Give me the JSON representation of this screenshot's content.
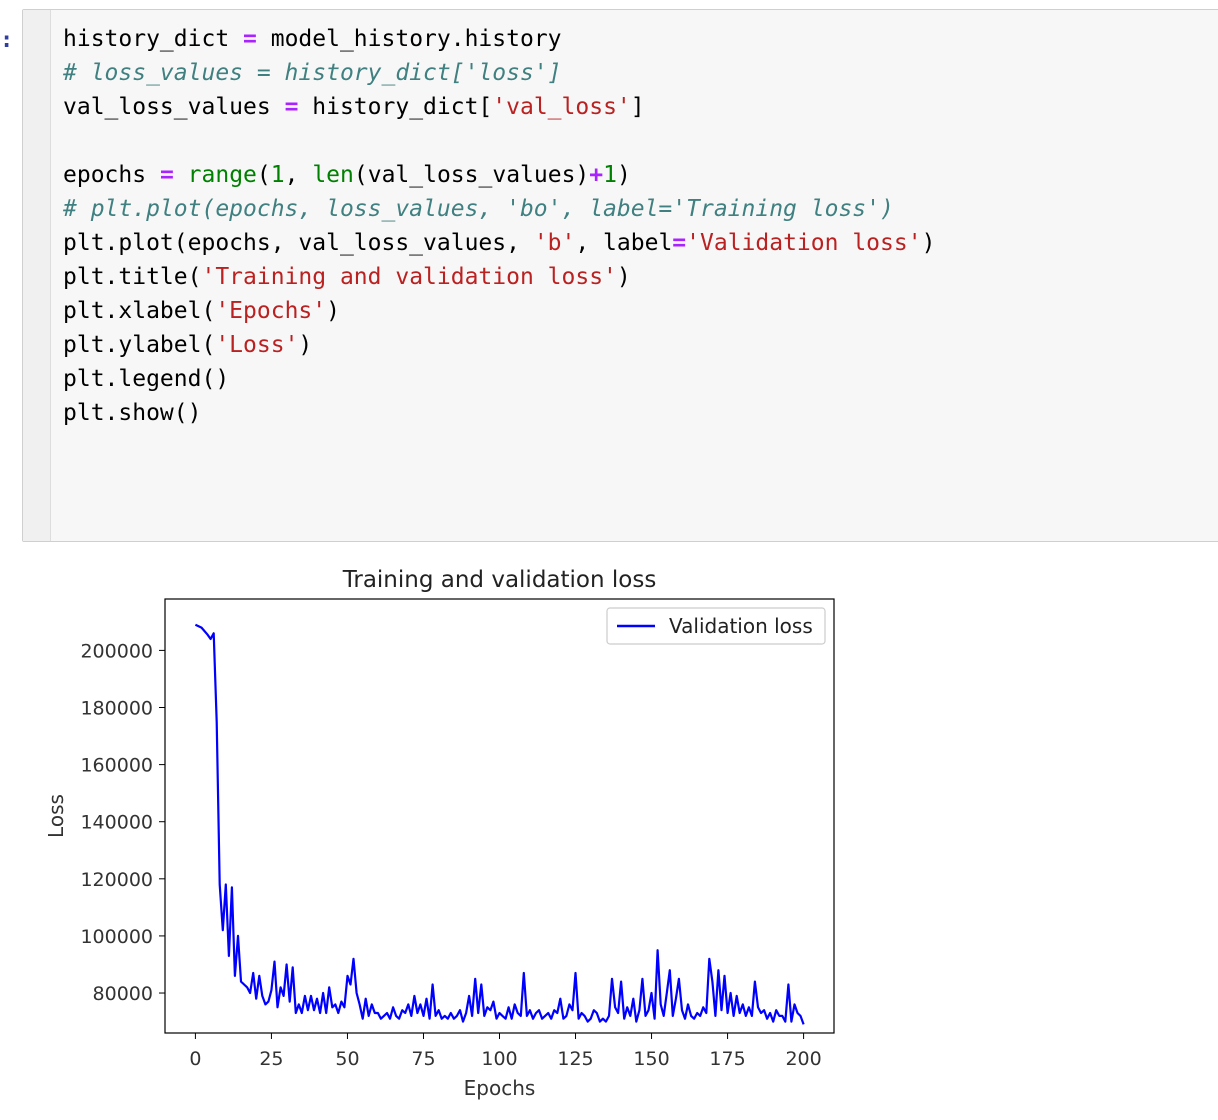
{
  "cell": {
    "prompt": ":",
    "lines": [
      [
        {
          "t": "plain",
          "v": "history_dict "
        },
        {
          "t": "op",
          "v": "="
        },
        {
          "t": "plain",
          "v": " model_history.history"
        }
      ],
      [
        {
          "t": "com",
          "v": "# loss_values = history_dict['loss']"
        }
      ],
      [
        {
          "t": "plain",
          "v": "val_loss_values "
        },
        {
          "t": "op",
          "v": "="
        },
        {
          "t": "plain",
          "v": " history_dict["
        },
        {
          "t": "str",
          "v": "'val_loss'"
        },
        {
          "t": "plain",
          "v": "]"
        }
      ],
      [],
      [
        {
          "t": "plain",
          "v": "epochs "
        },
        {
          "t": "op",
          "v": "="
        },
        {
          "t": "plain",
          "v": " "
        },
        {
          "t": "builtin",
          "v": "range"
        },
        {
          "t": "plain",
          "v": "("
        },
        {
          "t": "num",
          "v": "1"
        },
        {
          "t": "plain",
          "v": ", "
        },
        {
          "t": "builtin",
          "v": "len"
        },
        {
          "t": "plain",
          "v": "(val_loss_values)"
        },
        {
          "t": "op",
          "v": "+"
        },
        {
          "t": "num",
          "v": "1"
        },
        {
          "t": "plain",
          "v": ")"
        }
      ],
      [
        {
          "t": "com",
          "v": "# plt.plot(epochs, loss_values, 'bo', label='Training loss')"
        }
      ],
      [
        {
          "t": "plain",
          "v": "plt.plot(epochs, val_loss_values, "
        },
        {
          "t": "str",
          "v": "'b'"
        },
        {
          "t": "plain",
          "v": ", label"
        },
        {
          "t": "op",
          "v": "="
        },
        {
          "t": "str",
          "v": "'Validation loss'"
        },
        {
          "t": "plain",
          "v": ")"
        }
      ],
      [
        {
          "t": "plain",
          "v": "plt.title("
        },
        {
          "t": "str",
          "v": "'Training and validation loss'"
        },
        {
          "t": "plain",
          "v": ")"
        }
      ],
      [
        {
          "t": "plain",
          "v": "plt.xlabel("
        },
        {
          "t": "str",
          "v": "'Epochs'"
        },
        {
          "t": "plain",
          "v": ")"
        }
      ],
      [
        {
          "t": "plain",
          "v": "plt.ylabel("
        },
        {
          "t": "str",
          "v": "'Loss'"
        },
        {
          "t": "plain",
          "v": ")"
        }
      ],
      [
        {
          "t": "plain",
          "v": "plt.legend()"
        }
      ],
      [
        {
          "t": "plain",
          "v": "plt.show()"
        }
      ]
    ]
  },
  "colors": {
    "line": "#0000ff",
    "axis": "#000000",
    "legend_border": "#cccccc"
  },
  "chart_data": {
    "type": "line",
    "title": "Training and validation loss",
    "xlabel": "Epochs",
    "ylabel": "Loss",
    "xlim": [
      -10,
      210
    ],
    "ylim": [
      66000,
      218000
    ],
    "xticks": [
      0,
      25,
      50,
      75,
      100,
      125,
      150,
      175,
      200
    ],
    "yticks": [
      80000,
      100000,
      120000,
      140000,
      160000,
      180000,
      200000
    ],
    "grid": false,
    "legend_loc": "upper right",
    "series": [
      {
        "name": "Validation loss",
        "color": "#0000ff",
        "points": [
          [
            0,
            209000
          ],
          [
            2,
            208000
          ],
          [
            4,
            205500
          ],
          [
            5,
            204000
          ],
          [
            6,
            206000
          ],
          [
            7,
            175000
          ],
          [
            8,
            118000
          ],
          [
            9,
            102000
          ],
          [
            10,
            118000
          ],
          [
            11,
            93000
          ],
          [
            12,
            117000
          ],
          [
            13,
            86000
          ],
          [
            14,
            100000
          ],
          [
            15,
            84000
          ],
          [
            16,
            83000
          ],
          [
            17,
            82000
          ],
          [
            18,
            80000
          ],
          [
            19,
            87000
          ],
          [
            20,
            78000
          ],
          [
            21,
            86000
          ],
          [
            22,
            79000
          ],
          [
            23,
            76000
          ],
          [
            24,
            77000
          ],
          [
            25,
            81000
          ],
          [
            26,
            91000
          ],
          [
            27,
            75000
          ],
          [
            28,
            82000
          ],
          [
            29,
            79000
          ],
          [
            30,
            90000
          ],
          [
            31,
            77000
          ],
          [
            32,
            89000
          ],
          [
            33,
            73000
          ],
          [
            34,
            76000
          ],
          [
            35,
            73000
          ],
          [
            36,
            79000
          ],
          [
            37,
            74000
          ],
          [
            38,
            79000
          ],
          [
            39,
            74000
          ],
          [
            40,
            78000
          ],
          [
            41,
            73000
          ],
          [
            42,
            80000
          ],
          [
            43,
            73000
          ],
          [
            44,
            82000
          ],
          [
            45,
            75000
          ],
          [
            46,
            76000
          ],
          [
            47,
            73000
          ],
          [
            48,
            77000
          ],
          [
            49,
            75000
          ],
          [
            50,
            86000
          ],
          [
            51,
            83000
          ],
          [
            52,
            92000
          ],
          [
            53,
            80000
          ],
          [
            54,
            76000
          ],
          [
            55,
            71000
          ],
          [
            56,
            78000
          ],
          [
            57,
            72000
          ],
          [
            58,
            76000
          ],
          [
            59,
            73000
          ],
          [
            60,
            73000
          ],
          [
            61,
            71000
          ],
          [
            62,
            72000
          ],
          [
            63,
            73000
          ],
          [
            64,
            71000
          ],
          [
            65,
            75000
          ],
          [
            66,
            72000
          ],
          [
            67,
            71000
          ],
          [
            68,
            74000
          ],
          [
            69,
            73000
          ],
          [
            70,
            76000
          ],
          [
            71,
            72000
          ],
          [
            72,
            79000
          ],
          [
            73,
            73000
          ],
          [
            74,
            76000
          ],
          [
            75,
            72000
          ],
          [
            76,
            78000
          ],
          [
            77,
            71000
          ],
          [
            78,
            83000
          ],
          [
            79,
            72000
          ],
          [
            80,
            74000
          ],
          [
            81,
            71000
          ],
          [
            82,
            72000
          ],
          [
            83,
            71000
          ],
          [
            84,
            73000
          ],
          [
            85,
            71000
          ],
          [
            86,
            72000
          ],
          [
            87,
            74000
          ],
          [
            88,
            70000
          ],
          [
            89,
            73000
          ],
          [
            90,
            79000
          ],
          [
            91,
            72000
          ],
          [
            92,
            85000
          ],
          [
            93,
            73000
          ],
          [
            94,
            83000
          ],
          [
            95,
            72000
          ],
          [
            96,
            75000
          ],
          [
            97,
            74000
          ],
          [
            98,
            77000
          ],
          [
            99,
            71000
          ],
          [
            100,
            73000
          ],
          [
            101,
            72000
          ],
          [
            102,
            71000
          ],
          [
            103,
            75000
          ],
          [
            104,
            71000
          ],
          [
            105,
            76000
          ],
          [
            106,
            73000
          ],
          [
            107,
            72000
          ],
          [
            108,
            87000
          ],
          [
            109,
            72000
          ],
          [
            110,
            74000
          ],
          [
            111,
            71000
          ],
          [
            112,
            73000
          ],
          [
            113,
            74000
          ],
          [
            114,
            71000
          ],
          [
            115,
            72000
          ],
          [
            116,
            73000
          ],
          [
            117,
            71000
          ],
          [
            118,
            74000
          ],
          [
            119,
            73000
          ],
          [
            120,
            78000
          ],
          [
            121,
            71000
          ],
          [
            122,
            72000
          ],
          [
            123,
            76000
          ],
          [
            124,
            74000
          ],
          [
            125,
            87000
          ],
          [
            126,
            71000
          ],
          [
            127,
            73000
          ],
          [
            128,
            72000
          ],
          [
            129,
            70000
          ],
          [
            130,
            71000
          ],
          [
            131,
            74000
          ],
          [
            132,
            73000
          ],
          [
            133,
            70000
          ],
          [
            134,
            71000
          ],
          [
            135,
            70000
          ],
          [
            136,
            72000
          ],
          [
            137,
            85000
          ],
          [
            138,
            75000
          ],
          [
            139,
            73000
          ],
          [
            140,
            84000
          ],
          [
            141,
            71000
          ],
          [
            142,
            75000
          ],
          [
            143,
            72000
          ],
          [
            144,
            78000
          ],
          [
            145,
            70000
          ],
          [
            146,
            74000
          ],
          [
            147,
            85000
          ],
          [
            148,
            72000
          ],
          [
            149,
            74000
          ],
          [
            150,
            80000
          ],
          [
            151,
            71000
          ],
          [
            152,
            95000
          ],
          [
            153,
            76000
          ],
          [
            154,
            72000
          ],
          [
            155,
            80000
          ],
          [
            156,
            88000
          ],
          [
            157,
            72000
          ],
          [
            158,
            78000
          ],
          [
            159,
            85000
          ],
          [
            160,
            74000
          ],
          [
            161,
            71000
          ],
          [
            162,
            76000
          ],
          [
            163,
            72000
          ],
          [
            164,
            71000
          ],
          [
            165,
            73000
          ],
          [
            166,
            72000
          ],
          [
            167,
            75000
          ],
          [
            168,
            73000
          ],
          [
            169,
            92000
          ],
          [
            170,
            84000
          ],
          [
            171,
            72000
          ],
          [
            172,
            88000
          ],
          [
            173,
            74000
          ],
          [
            174,
            86000
          ],
          [
            175,
            73000
          ],
          [
            176,
            80000
          ],
          [
            177,
            72000
          ],
          [
            178,
            79000
          ],
          [
            179,
            73000
          ],
          [
            180,
            76000
          ],
          [
            181,
            72000
          ],
          [
            182,
            75000
          ],
          [
            183,
            72000
          ],
          [
            184,
            84000
          ],
          [
            185,
            75000
          ],
          [
            186,
            73000
          ],
          [
            187,
            74000
          ],
          [
            188,
            71000
          ],
          [
            189,
            73000
          ],
          [
            190,
            70000
          ],
          [
            191,
            74000
          ],
          [
            192,
            72000
          ],
          [
            193,
            72000
          ],
          [
            194,
            70000
          ],
          [
            195,
            83000
          ],
          [
            196,
            70000
          ],
          [
            197,
            76000
          ],
          [
            198,
            73000
          ],
          [
            199,
            72000
          ],
          [
            200,
            69000
          ]
        ]
      }
    ]
  }
}
